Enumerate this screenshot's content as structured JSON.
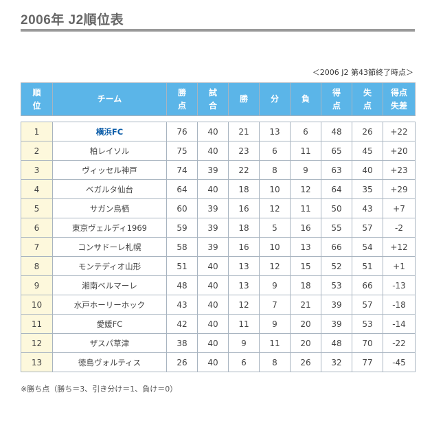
{
  "page": {
    "title": "2006年 J2順位表",
    "as_of": "＜2006 J2 第43節終了時点＞",
    "footnote": "※勝ち点（勝ち＝3、引き分け＝1、負け＝0）"
  },
  "table": {
    "headers": [
      [
        "順",
        "位"
      ],
      [
        "チーム"
      ],
      [
        "勝",
        "点"
      ],
      [
        "試",
        "合"
      ],
      [
        "勝"
      ],
      [
        "分"
      ],
      [
        "負"
      ],
      [
        "得",
        "点"
      ],
      [
        "失",
        "点"
      ],
      [
        "得点",
        "失差"
      ]
    ],
    "rows": [
      [
        "1",
        "横浜FC",
        "76",
        "40",
        "21",
        "13",
        "6",
        "48",
        "26",
        "+22"
      ],
      [
        "2",
        "柏レイソル",
        "75",
        "40",
        "23",
        "6",
        "11",
        "65",
        "45",
        "+20"
      ],
      [
        "3",
        "ヴィッセル神戸",
        "74",
        "39",
        "22",
        "8",
        "9",
        "63",
        "40",
        "+23"
      ],
      [
        "4",
        "ベガルタ仙台",
        "64",
        "40",
        "18",
        "10",
        "12",
        "64",
        "35",
        "+29"
      ],
      [
        "5",
        "サガン鳥栖",
        "60",
        "39",
        "16",
        "12",
        "11",
        "50",
        "43",
        "+7"
      ],
      [
        "6",
        "東京ヴェルディ1969",
        "59",
        "39",
        "18",
        "5",
        "16",
        "55",
        "57",
        "-2"
      ],
      [
        "7",
        "コンサドーレ札幌",
        "58",
        "39",
        "16",
        "10",
        "13",
        "66",
        "54",
        "+12"
      ],
      [
        "8",
        "モンテディオ山形",
        "51",
        "40",
        "13",
        "12",
        "15",
        "52",
        "51",
        "+1"
      ],
      [
        "9",
        "湘南ベルマーレ",
        "48",
        "40",
        "13",
        "9",
        "18",
        "53",
        "66",
        "-13"
      ],
      [
        "10",
        "水戸ホーリーホック",
        "43",
        "40",
        "12",
        "7",
        "21",
        "39",
        "57",
        "-18"
      ],
      [
        "11",
        "愛媛FC",
        "42",
        "40",
        "11",
        "9",
        "20",
        "39",
        "53",
        "-14"
      ],
      [
        "12",
        "ザスパ草津",
        "38",
        "40",
        "9",
        "11",
        "20",
        "48",
        "70",
        "-22"
      ],
      [
        "13",
        "徳島ヴォルティス",
        "26",
        "40",
        "6",
        "8",
        "26",
        "32",
        "77",
        "-45"
      ]
    ],
    "highlight_row": 0,
    "colors": {
      "header_bg": "#5bb5e8",
      "rank_bg": "#fdf8dc",
      "highlight_team": "#0a5ca8"
    }
  }
}
